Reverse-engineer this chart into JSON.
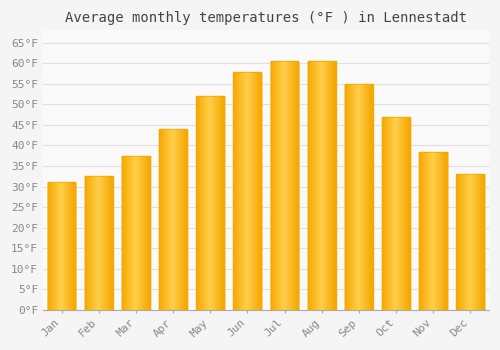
{
  "title": "Average monthly temperatures (°F ) in Lennestadt",
  "months": [
    "Jan",
    "Feb",
    "Mar",
    "Apr",
    "May",
    "Jun",
    "Jul",
    "Aug",
    "Sep",
    "Oct",
    "Nov",
    "Dec"
  ],
  "values": [
    31,
    32.5,
    37.5,
    44,
    52,
    58,
    60.5,
    60.5,
    55,
    47,
    38.5,
    33
  ],
  "bar_color_center": "#FFD04C",
  "bar_color_edge": "#F5A800",
  "background_color": "#F5F5F5",
  "plot_bg_color": "#FAFAFA",
  "grid_color": "#E0E0E0",
  "ytick_labels": [
    "0°F",
    "5°F",
    "10°F",
    "15°F",
    "20°F",
    "25°F",
    "30°F",
    "35°F",
    "40°F",
    "45°F",
    "50°F",
    "55°F",
    "60°F",
    "65°F"
  ],
  "ytick_values": [
    0,
    5,
    10,
    15,
    20,
    25,
    30,
    35,
    40,
    45,
    50,
    55,
    60,
    65
  ],
  "ylim": [
    0,
    68
  ],
  "title_fontsize": 10,
  "tick_fontsize": 8,
  "tick_color": "#888888"
}
